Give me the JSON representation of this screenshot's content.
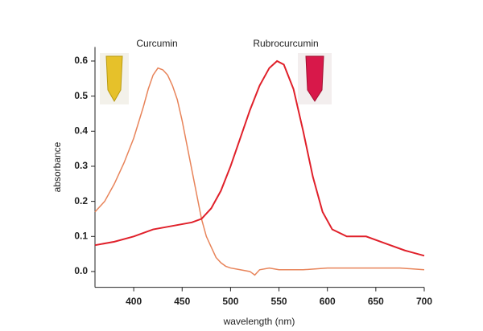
{
  "chart_data": {
    "type": "line",
    "x_label": "wavelength (nm)",
    "y_label": "absorbance",
    "xlim": [
      360,
      700
    ],
    "xticks": [
      400,
      450,
      500,
      550,
      600,
      650,
      700
    ],
    "ylim": [
      -0.045,
      0.64
    ],
    "yticks": [
      {
        "value": 0,
        "label": "0.0"
      },
      0.1,
      0.2,
      0.3,
      0.4,
      0.5,
      0.6
    ],
    "series": [
      {
        "name": "Curcumin",
        "color": "#e8845a",
        "x": [
          360,
          370,
          380,
          390,
          400,
          410,
          415,
          420,
          425,
          430,
          435,
          440,
          445,
          450,
          455,
          460,
          465,
          470,
          475,
          480,
          485,
          490,
          495,
          500,
          510,
          520,
          525,
          530,
          540,
          550,
          575,
          600,
          625,
          650,
          675,
          700
        ],
        "values": [
          0.17,
          0.2,
          0.25,
          0.31,
          0.38,
          0.47,
          0.52,
          0.56,
          0.58,
          0.575,
          0.56,
          0.53,
          0.49,
          0.43,
          0.36,
          0.29,
          0.22,
          0.15,
          0.1,
          0.07,
          0.04,
          0.025,
          0.015,
          0.01,
          0.005,
          0.0,
          -0.01,
          0.005,
          0.01,
          0.005,
          0.005,
          0.01,
          0.01,
          0.01,
          0.01,
          0.005
        ]
      },
      {
        "name": "Rubrocurcumin",
        "color": "#e0202a",
        "x": [
          360,
          380,
          400,
          420,
          440,
          460,
          470,
          480,
          490,
          500,
          510,
          520,
          530,
          540,
          548,
          555,
          565,
          575,
          585,
          595,
          605,
          620,
          640,
          660,
          680,
          700
        ],
        "values": [
          0.075,
          0.085,
          0.1,
          0.12,
          0.13,
          0.14,
          0.15,
          0.18,
          0.23,
          0.3,
          0.38,
          0.46,
          0.53,
          0.58,
          0.6,
          0.59,
          0.52,
          0.4,
          0.27,
          0.17,
          0.12,
          0.1,
          0.1,
          0.08,
          0.06,
          0.045
        ]
      }
    ]
  }
}
